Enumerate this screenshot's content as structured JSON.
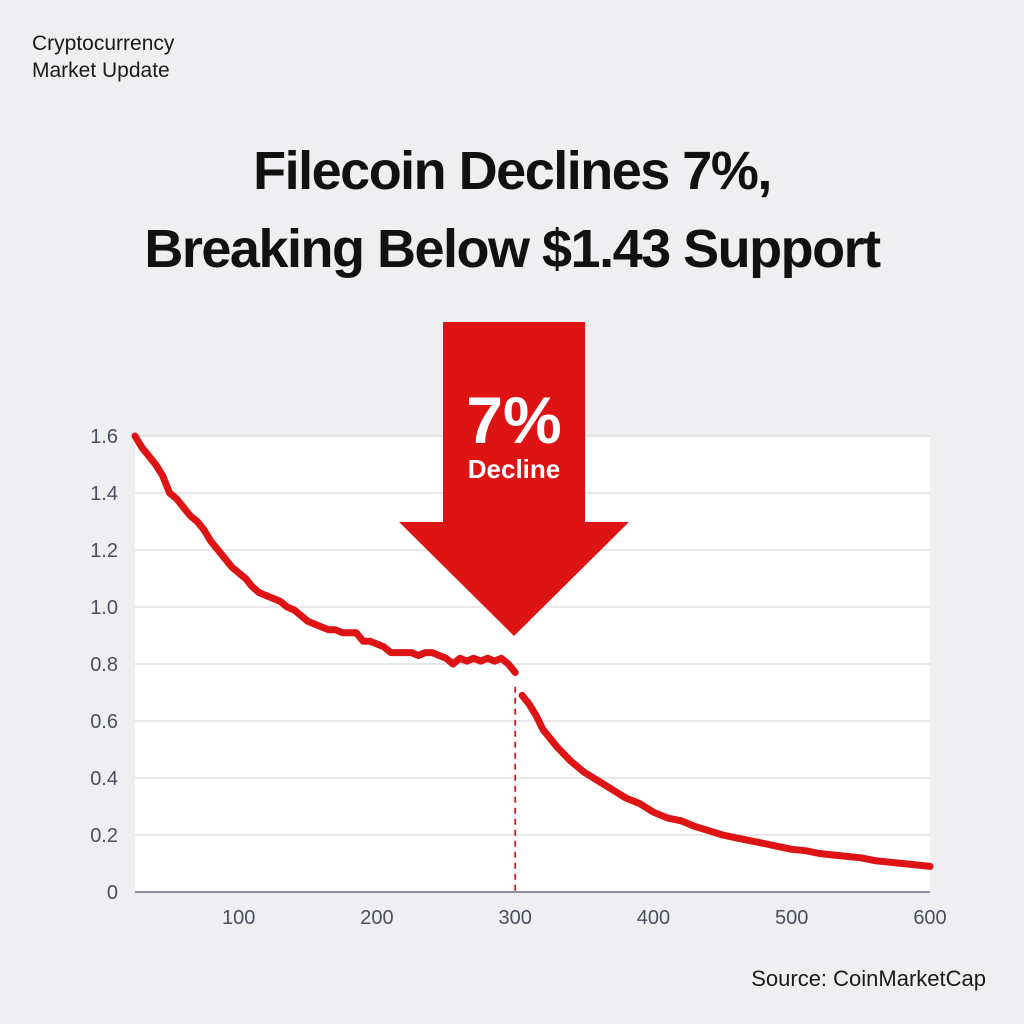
{
  "header": {
    "kicker_line1": "Cryptocurrency",
    "kicker_line2": "Market Update",
    "headline_line1": "Filecoin Declines 7%,",
    "headline_line2": "Breaking Below $1.43 Support"
  },
  "annotation": {
    "percent": "7%",
    "label": "Decline",
    "color": "#de1414"
  },
  "source": "Source: CoinMarketCap",
  "chart_data": {
    "type": "line",
    "title": "",
    "xlabel": "",
    "ylabel": "",
    "xlim": [
      25,
      600
    ],
    "ylim": [
      0,
      1.6
    ],
    "x_ticks": [
      100,
      200,
      300,
      400,
      500,
      600
    ],
    "y_ticks": [
      0,
      0.2,
      0.4,
      0.6,
      0.8,
      1.0,
      1.2,
      1.4,
      1.6
    ],
    "y_tick_labels": [
      "0",
      "0.2",
      "0.4",
      "0.6",
      "0.8",
      "1.0",
      "1.2",
      "1.4",
      "1.6"
    ],
    "grid": "horizontal",
    "line_color": "#de1414",
    "marker_x": 300,
    "series": [
      {
        "segment": "before",
        "x": [
          25,
          30,
          35,
          40,
          45,
          50,
          55,
          60,
          65,
          70,
          75,
          80,
          85,
          90,
          95,
          100,
          105,
          110,
          115,
          120,
          125,
          130,
          135,
          140,
          145,
          150,
          155,
          160,
          165,
          170,
          175,
          180,
          185,
          190,
          195,
          200,
          205,
          210,
          215,
          220,
          225,
          230,
          235,
          240,
          245,
          250,
          255,
          260,
          265,
          270,
          275,
          280,
          285,
          290,
          295,
          300
        ],
        "y": [
          1.6,
          1.56,
          1.53,
          1.5,
          1.46,
          1.4,
          1.38,
          1.35,
          1.32,
          1.3,
          1.27,
          1.23,
          1.2,
          1.17,
          1.14,
          1.12,
          1.1,
          1.07,
          1.05,
          1.04,
          1.03,
          1.02,
          1.0,
          0.99,
          0.97,
          0.95,
          0.94,
          0.93,
          0.92,
          0.92,
          0.91,
          0.91,
          0.91,
          0.88,
          0.88,
          0.87,
          0.86,
          0.84,
          0.84,
          0.84,
          0.84,
          0.83,
          0.84,
          0.84,
          0.83,
          0.82,
          0.8,
          0.82,
          0.81,
          0.82,
          0.81,
          0.82,
          0.81,
          0.82,
          0.8,
          0.77
        ]
      },
      {
        "segment": "after",
        "x": [
          305,
          310,
          315,
          320,
          330,
          340,
          350,
          360,
          370,
          380,
          390,
          400,
          410,
          420,
          430,
          440,
          450,
          460,
          470,
          480,
          490,
          500,
          510,
          520,
          530,
          540,
          550,
          560,
          570,
          580,
          590,
          600
        ],
        "y": [
          0.69,
          0.66,
          0.62,
          0.57,
          0.51,
          0.46,
          0.42,
          0.39,
          0.36,
          0.33,
          0.31,
          0.28,
          0.26,
          0.25,
          0.23,
          0.215,
          0.2,
          0.19,
          0.18,
          0.17,
          0.16,
          0.15,
          0.145,
          0.135,
          0.13,
          0.125,
          0.12,
          0.11,
          0.105,
          0.1,
          0.095,
          0.09
        ]
      }
    ]
  }
}
